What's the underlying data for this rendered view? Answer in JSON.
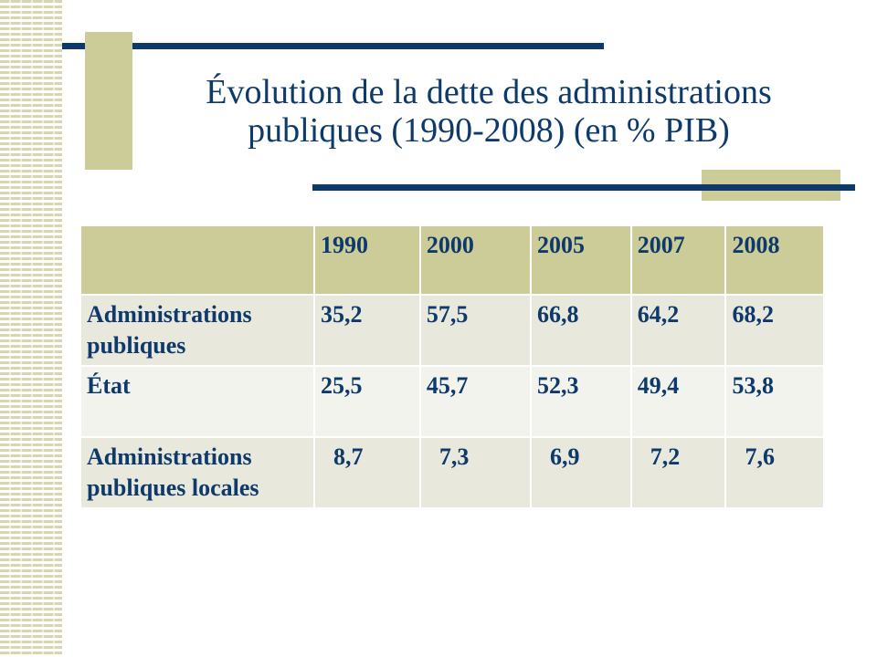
{
  "slide": {
    "title_line1": "Évolution de la dette des administrations",
    "title_line2": "publiques (1990-2008) (en % PIB)"
  },
  "table": {
    "headers": [
      "",
      "1990",
      "2000",
      "2005",
      "2007",
      "2008"
    ],
    "rows": [
      {
        "label_line1": "Administrations",
        "label_line2": "publiques",
        "values": [
          "35,2",
          "57,5",
          "66,8",
          "64,2",
          "68,2"
        ]
      },
      {
        "label_line1": "État",
        "label_line2": "",
        "values": [
          "25,5",
          "45,7",
          "52,3",
          "49,4",
          "53,8"
        ]
      },
      {
        "label_line1": "Administrations",
        "label_line2": "publiques locales",
        "values": [
          "8,7",
          "7,3",
          "6,9",
          "7,2",
          "7,6"
        ]
      }
    ]
  },
  "colors": {
    "navy": "#0e3a6b",
    "khaki": "#cccc99",
    "row_light": "#e8e8dc",
    "row_lighter": "#f3f3ee"
  }
}
